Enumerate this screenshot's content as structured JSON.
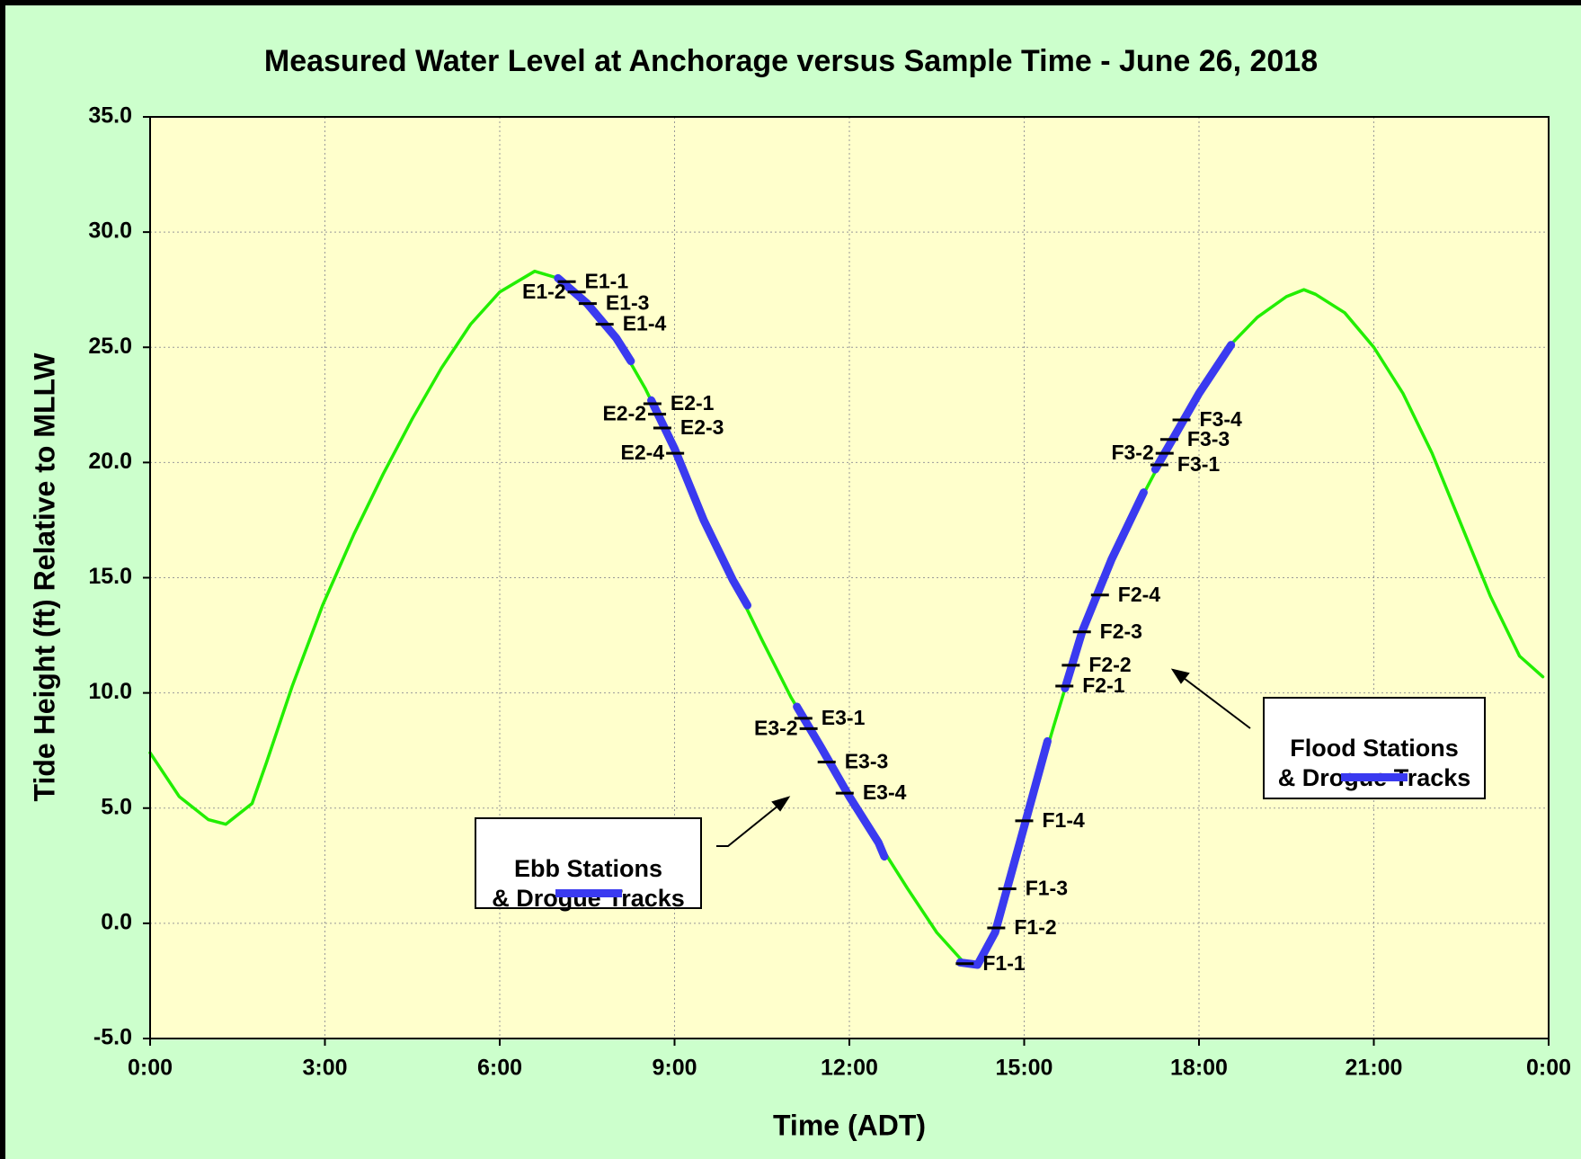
{
  "chart_data": {
    "type": "line",
    "title": "Measured Water Level at Anchorage versus Sample Time - June 26, 2018",
    "xlabel": "Time (ADT)",
    "ylabel": "Tide Height (ft)  Relative to MLLW",
    "xlim": [
      0,
      24
    ],
    "ylim": [
      -5,
      35
    ],
    "xticks": [
      {
        "value": 0,
        "label": "0:00"
      },
      {
        "value": 3,
        "label": "3:00"
      },
      {
        "value": 6,
        "label": "6:00"
      },
      {
        "value": 9,
        "label": "9:00"
      },
      {
        "value": 12,
        "label": "12:00"
      },
      {
        "value": 15,
        "label": "15:00"
      },
      {
        "value": 18,
        "label": "18:00"
      },
      {
        "value": 21,
        "label": "21:00"
      },
      {
        "value": 24,
        "label": "0:00"
      }
    ],
    "yticks": [
      {
        "value": -5,
        "label": "-5.0"
      },
      {
        "value": 0,
        "label": "0.0"
      },
      {
        "value": 5,
        "label": "5.0"
      },
      {
        "value": 10,
        "label": "10.0"
      },
      {
        "value": 15,
        "label": "15.0"
      },
      {
        "value": 20,
        "label": "20.0"
      },
      {
        "value": 25,
        "label": "25.0"
      },
      {
        "value": 30,
        "label": "30.0"
      },
      {
        "value": 35,
        "label": "35.0"
      }
    ],
    "grid": true,
    "series": [
      {
        "color": "#22ee00",
        "x": [
          0,
          0.5,
          1.0,
          1.3,
          1.75,
          2.0,
          2.44,
          2.96,
          3.5,
          4.0,
          4.5,
          5.0,
          5.5,
          6.0,
          6.6,
          7.0,
          7.5,
          8.0,
          8.5,
          9.0,
          9.5,
          10.0,
          10.5,
          11.0,
          11.5,
          12.0,
          12.5,
          13.0,
          13.5,
          14.0,
          14.2,
          14.5,
          15.0,
          15.5,
          16.0,
          16.5,
          17.0,
          17.5,
          18.0,
          18.5,
          19.0,
          19.5,
          19.8,
          20.0,
          20.5,
          21.0,
          21.5,
          22.0,
          22.5,
          23.0,
          23.5,
          23.9
        ],
        "values": [
          7.4,
          5.5,
          4.5,
          4.3,
          5.2,
          7.0,
          10.3,
          13.8,
          16.9,
          19.5,
          21.9,
          24.1,
          26.0,
          27.4,
          28.3,
          28.0,
          26.9,
          25.4,
          23.2,
          20.6,
          17.5,
          14.9,
          12.3,
          9.8,
          7.7,
          5.5,
          3.5,
          1.5,
          -0.4,
          -1.8,
          -1.8,
          -0.4,
          4.2,
          8.5,
          12.7,
          15.8,
          18.4,
          20.8,
          23.0,
          25.0,
          26.3,
          27.2,
          27.5,
          27.3,
          26.5,
          25.0,
          23.0,
          20.4,
          17.3,
          14.2,
          11.6,
          10.7
        ]
      },
      {
        "name": "Ebb Stations\n& Drogue Tracks",
        "color": "#3a3af0",
        "x": [
          7.0,
          7.5,
          8.0,
          8.25,
          null,
          8.6,
          9.0,
          9.5,
          10.0,
          10.25,
          null,
          11.1,
          11.5,
          12.0,
          12.5,
          12.6
        ],
        "values": [
          28.0,
          26.9,
          25.4,
          24.4,
          null,
          22.7,
          20.6,
          17.5,
          14.9,
          13.8,
          null,
          9.4,
          7.7,
          5.5,
          3.5,
          2.9
        ]
      },
      {
        "name": "Flood Stations\n& Drogue Tracks",
        "color": "#3a3af0",
        "x": [
          13.9,
          14.2,
          14.5,
          15.0,
          15.4,
          null,
          15.7,
          16.0,
          16.5,
          17.05,
          null,
          17.25,
          17.5,
          18.0,
          18.55
        ],
        "values": [
          -1.7,
          -1.8,
          -0.4,
          4.2,
          7.9,
          null,
          10.2,
          12.7,
          15.8,
          18.7,
          null,
          19.7,
          20.8,
          23.0,
          25.1
        ]
      }
    ],
    "stations": [
      {
        "label": "E1-1",
        "x": 7.15,
        "value": 27.85
      },
      {
        "label": "E1-2",
        "x": 7.32,
        "value": 27.4
      },
      {
        "label": "E1-3",
        "x": 7.51,
        "value": 26.9
      },
      {
        "label": "E1-4",
        "x": 7.8,
        "value": 26.0
      },
      {
        "label": "E2-1",
        "x": 8.62,
        "value": 22.55
      },
      {
        "label": "E2-2",
        "x": 8.7,
        "value": 22.1
      },
      {
        "label": "E2-3",
        "x": 8.79,
        "value": 21.5
      },
      {
        "label": "E2-4",
        "x": 9.01,
        "value": 20.4
      },
      {
        "label": "E3-1",
        "x": 11.21,
        "value": 8.9
      },
      {
        "label": "E3-2",
        "x": 11.3,
        "value": 8.45
      },
      {
        "label": "E3-3",
        "x": 11.61,
        "value": 7.0
      },
      {
        "label": "E3-4",
        "x": 11.92,
        "value": 5.65
      },
      {
        "label": "F1-1",
        "x": 13.98,
        "value": -1.75
      },
      {
        "label": "F1-2",
        "x": 14.52,
        "value": -0.2
      },
      {
        "label": "F1-3",
        "x": 14.71,
        "value": 1.5
      },
      {
        "label": "F1-4",
        "x": 15.0,
        "value": 4.45
      },
      {
        "label": "F2-1",
        "x": 15.69,
        "value": 10.3
      },
      {
        "label": "F2-2",
        "x": 15.8,
        "value": 11.2
      },
      {
        "label": "F2-3",
        "x": 15.99,
        "value": 12.65
      },
      {
        "label": "F2-4",
        "x": 16.3,
        "value": 14.25
      },
      {
        "label": "F3-1",
        "x": 17.32,
        "value": 19.9
      },
      {
        "label": "F3-2",
        "x": 17.41,
        "value": 20.4
      },
      {
        "label": "F3-3",
        "x": 17.49,
        "value": 21.0
      },
      {
        "label": "F3-4",
        "x": 17.7,
        "value": 21.85
      }
    ]
  }
}
